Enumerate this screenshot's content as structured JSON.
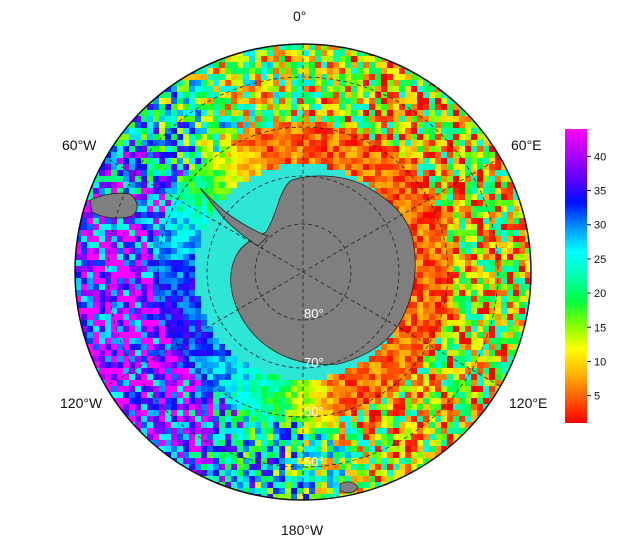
{
  "map": {
    "projection": "south-polar-stereographic",
    "longitude_labels": {
      "top": "0°",
      "upper_right": "60°E",
      "lower_right": "120°E",
      "bottom": "180°W",
      "lower_left": "120°W",
      "upper_left": "60°W"
    },
    "latitude_labels": [
      "80°",
      "70°",
      "60°",
      "50°"
    ],
    "land_color": "#7f7f7f",
    "ice_color": "#2ee6d6"
  },
  "colorbar": {
    "ticks": [
      "5",
      "10",
      "15",
      "20",
      "25",
      "30",
      "35",
      "40"
    ],
    "min": 1,
    "max": 44,
    "colormap": [
      "#ff0000",
      "#ff5a00",
      "#ffb400",
      "#ffff00",
      "#80ff00",
      "#00ff40",
      "#00ffb0",
      "#00ffff",
      "#0090ff",
      "#0010ff",
      "#6000ff",
      "#b000ff",
      "#ff00ff"
    ]
  }
}
